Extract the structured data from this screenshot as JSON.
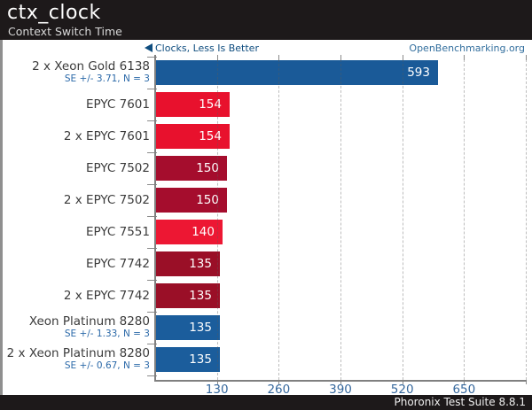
{
  "header": {
    "title": "ctx_clock",
    "subtitle": "Context Switch Time"
  },
  "annotations": {
    "better_note": "Clocks, Less Is Better",
    "better_icon": "left-arrow-icon",
    "site": "OpenBenchmarking.org"
  },
  "footer": {
    "text": "Phoronix Test Suite 8.8.1"
  },
  "colors": {
    "header_bg": "#1d191a",
    "better_note_text": "#0f4d7f",
    "site_link_text": "#336f9e",
    "axis": "#808080",
    "tick_label": "#36689d",
    "bar_value_label": "#ffffff",
    "category_label": "#3b3b3b",
    "se_label": "#2a68a8"
  },
  "chart_data": {
    "type": "bar",
    "orientation": "horizontal",
    "title": "ctx_clock",
    "subtitle": "Context Switch Time",
    "xlabel": "",
    "ylabel": "",
    "unit_note": "Clocks, Less Is Better",
    "xlim": [
      0,
      780
    ],
    "xticks": [
      130,
      260,
      390,
      520,
      650
    ],
    "grid": "vertical-dashed",
    "value_labels": "inside-end",
    "legend": "none",
    "rows": [
      {
        "label": "2 x Xeon Gold 6138",
        "se": "SE +/- 3.71, N = 3",
        "value": 593,
        "color": "#1a5a98"
      },
      {
        "label": "EPYC 7601",
        "se": null,
        "value": 154,
        "color": "#e8112d"
      },
      {
        "label": "2 x EPYC 7601",
        "se": null,
        "value": 154,
        "color": "#e8112d"
      },
      {
        "label": "EPYC 7502",
        "se": null,
        "value": 150,
        "color": "#a50d2d"
      },
      {
        "label": "2 x EPYC 7502",
        "se": null,
        "value": 150,
        "color": "#a50d2d"
      },
      {
        "label": "EPYC 7551",
        "se": null,
        "value": 140,
        "color": "#ed1733"
      },
      {
        "label": "EPYC 7742",
        "se": null,
        "value": 135,
        "color": "#9a0f27"
      },
      {
        "label": "2 x EPYC 7742",
        "se": null,
        "value": 135,
        "color": "#9a0f27"
      },
      {
        "label": "Xeon Platinum 8280",
        "se": "SE +/- 1.33, N = 3",
        "value": 135,
        "color": "#1b5d9c"
      },
      {
        "label": "2 x Xeon Platinum 8280",
        "se": "SE +/- 0.67, N = 3",
        "value": 135,
        "color": "#1b5d9c"
      }
    ]
  }
}
